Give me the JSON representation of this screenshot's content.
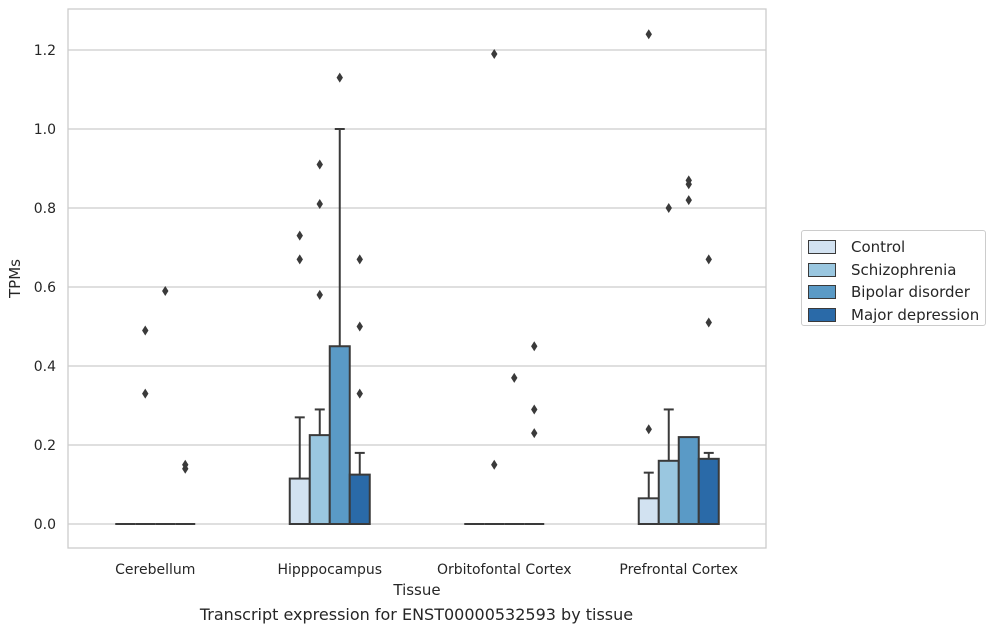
{
  "chart_data": {
    "type": "box",
    "title": "",
    "caption": "Transcript expression for ENST00000532593 by tissue",
    "xlabel": "Tissue",
    "ylabel": "TPMs",
    "ylim": [
      -0.06,
      1.3
    ],
    "yticks": [
      0.0,
      0.2,
      0.4,
      0.6,
      0.8,
      1.0,
      1.2
    ],
    "ytick_labels": [
      "0.0",
      "0.2",
      "0.4",
      "0.6",
      "0.8",
      "1.0",
      "1.2"
    ],
    "grid": "horizontal",
    "legend_position": "right",
    "categories": [
      "Cerebellum",
      "Hipppocampus",
      "Orbitofontal Cortex",
      "Prefrontal Cortex"
    ],
    "series": [
      {
        "name": "Control",
        "color": "#d2e2f1",
        "boxes": [
          {
            "q1": 0,
            "median": 0,
            "q3": 0,
            "whisker_low": 0,
            "whisker_high": 0,
            "outliers": []
          },
          {
            "q1": 0,
            "median": 0,
            "q3": 0.115,
            "whisker_low": 0,
            "whisker_high": 0.27,
            "outliers": [
              0.67,
              0.73
            ]
          },
          {
            "q1": 0,
            "median": 0,
            "q3": 0,
            "whisker_low": 0,
            "whisker_high": 0,
            "outliers": []
          },
          {
            "q1": 0,
            "median": 0,
            "q3": 0.065,
            "whisker_low": 0,
            "whisker_high": 0.13,
            "outliers": [
              0.24,
              1.24
            ]
          }
        ]
      },
      {
        "name": "Schizophrenia",
        "color": "#9ac7e0",
        "boxes": [
          {
            "q1": 0,
            "median": 0,
            "q3": 0,
            "whisker_low": 0,
            "whisker_high": 0,
            "outliers": [
              0.33,
              0.49
            ]
          },
          {
            "q1": 0,
            "median": 0,
            "q3": 0.225,
            "whisker_low": 0,
            "whisker_high": 0.29,
            "outliers": [
              0.58,
              0.81,
              0.91
            ]
          },
          {
            "q1": 0,
            "median": 0,
            "q3": 0,
            "whisker_low": 0,
            "whisker_high": 0,
            "outliers": [
              0.15,
              1.19
            ]
          },
          {
            "q1": 0,
            "median": 0,
            "q3": 0.16,
            "whisker_low": 0,
            "whisker_high": 0.29,
            "outliers": [
              0.8
            ]
          }
        ]
      },
      {
        "name": "Bipolar disorder",
        "color": "#5a9ac6",
        "boxes": [
          {
            "q1": 0,
            "median": 0,
            "q3": 0,
            "whisker_low": 0,
            "whisker_high": 0,
            "outliers": [
              0.59
            ]
          },
          {
            "q1": 0,
            "median": 0,
            "q3": 0.45,
            "whisker_low": 0,
            "whisker_high": 1.0,
            "outliers": [
              1.13
            ]
          },
          {
            "q1": 0,
            "median": 0,
            "q3": 0,
            "whisker_low": 0,
            "whisker_high": 0,
            "outliers": [
              0.37
            ]
          },
          {
            "q1": 0,
            "median": 0,
            "q3": 0.22,
            "whisker_low": 0,
            "whisker_high": 0.22,
            "outliers": [
              0.82,
              0.86,
              0.87
            ]
          }
        ]
      },
      {
        "name": "Major depression",
        "color": "#2a6aa8",
        "boxes": [
          {
            "q1": 0,
            "median": 0,
            "q3": 0,
            "whisker_low": 0,
            "whisker_high": 0,
            "outliers": [
              0.14,
              0.15
            ]
          },
          {
            "q1": 0,
            "median": 0,
            "q3": 0.125,
            "whisker_low": 0,
            "whisker_high": 0.18,
            "outliers": [
              0.33,
              0.5,
              0.67
            ]
          },
          {
            "q1": 0,
            "median": 0,
            "q3": 0,
            "whisker_low": 0,
            "whisker_high": 0,
            "outliers": [
              0.23,
              0.29,
              0.45
            ]
          },
          {
            "q1": 0,
            "median": 0,
            "q3": 0.165,
            "whisker_low": 0,
            "whisker_high": 0.18,
            "outliers": [
              0.51,
              0.67
            ]
          }
        ]
      }
    ]
  }
}
